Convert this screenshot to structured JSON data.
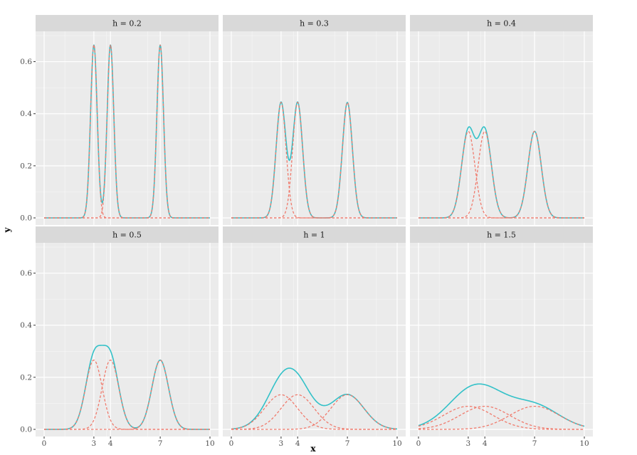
{
  "chart_data": {
    "type": "line",
    "facet_variable": "h",
    "facets": [
      {
        "label": "h = 0.2",
        "h": 0.2
      },
      {
        "label": "h = 0.3",
        "h": 0.3
      },
      {
        "label": "h = 0.4",
        "h": 0.4
      },
      {
        "label": "h = 0.5",
        "h": 0.5
      },
      {
        "label": "h = 1",
        "h": 1
      },
      {
        "label": "h = 1.5",
        "h": 1.5
      }
    ],
    "data_points": [
      3,
      4,
      7
    ],
    "xlabel": "x",
    "ylabel": "y",
    "xlim": [
      0,
      10
    ],
    "ylim": [
      0,
      0.7
    ],
    "x_ticks": [
      0,
      3,
      4,
      7,
      10
    ],
    "x_tick_labels": [
      "0",
      "3",
      "4",
      "7",
      "10"
    ],
    "y_ticks": [
      0,
      0.2,
      0.4,
      0.6
    ],
    "y_tick_labels": [
      "0.0",
      "0.2",
      "0.4",
      "0.6"
    ],
    "series": [
      {
        "kind": "sum",
        "color": "#33c1c8",
        "dash": "solid"
      },
      {
        "kind": "component",
        "color": "#f07a6c",
        "dash": "dashed"
      }
    ],
    "grid": true,
    "panel_background": "#ebebeb",
    "strip_background": "#d9d9d9",
    "layout_cols": 3,
    "layout_rows": 2
  }
}
